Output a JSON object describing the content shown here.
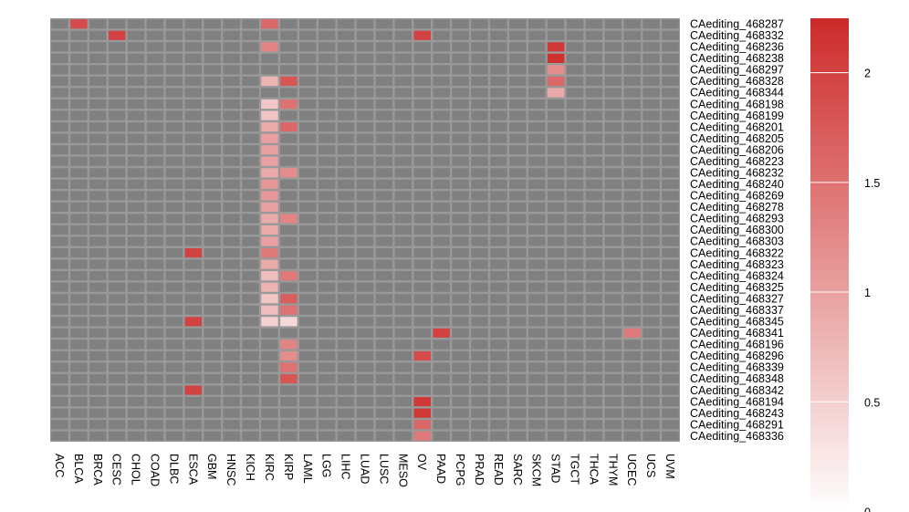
{
  "chart_data": {
    "type": "heatmap",
    "title": "",
    "xlabel": "",
    "ylabel": "",
    "rows": [
      "CAediting_468287",
      "CAediting_468332",
      "CAediting_468236",
      "CAediting_468238",
      "CAediting_468297",
      "CAediting_468328",
      "CAediting_468344",
      "CAediting_468198",
      "CAediting_468199",
      "CAediting_468201",
      "CAediting_468205",
      "CAediting_468206",
      "CAediting_468223",
      "CAediting_468232",
      "CAediting_468240",
      "CAediting_468269",
      "CAediting_468278",
      "CAediting_468293",
      "CAediting_468300",
      "CAediting_468303",
      "CAediting_468322",
      "CAediting_468323",
      "CAediting_468324",
      "CAediting_468325",
      "CAediting_468327",
      "CAediting_468337",
      "CAediting_468345",
      "CAediting_468341",
      "CAediting_468196",
      "CAediting_468296",
      "CAediting_468339",
      "CAediting_468348",
      "CAediting_468342",
      "CAediting_468194",
      "CAediting_468243",
      "CAediting_468291",
      "CAediting_468336"
    ],
    "columns": [
      "ACC",
      "BLCA",
      "BRCA",
      "CESC",
      "CHOL",
      "COAD",
      "DLBC",
      "ESCA",
      "GBM",
      "HNSC",
      "KICH",
      "KIRC",
      "KIRP",
      "LAML",
      "LGG",
      "LIHC",
      "LUAD",
      "LUSC",
      "MESO",
      "OV",
      "PAAD",
      "PCPG",
      "PRAD",
      "READ",
      "SARC",
      "SKCM",
      "STAD",
      "TGCT",
      "THCA",
      "THYM",
      "UCEC",
      "UCS",
      "UVM"
    ],
    "cells": [
      {
        "row": "CAediting_468287",
        "col": "BLCA",
        "value": 1.9
      },
      {
        "row": "CAediting_468287",
        "col": "KIRC",
        "value": 1.6
      },
      {
        "row": "CAediting_468332",
        "col": "CESC",
        "value": 2.0
      },
      {
        "row": "CAediting_468332",
        "col": "OV",
        "value": 2.0
      },
      {
        "row": "CAediting_468236",
        "col": "KIRC",
        "value": 1.3
      },
      {
        "row": "CAediting_468236",
        "col": "STAD",
        "value": 2.1
      },
      {
        "row": "CAediting_468238",
        "col": "STAD",
        "value": 2.2
      },
      {
        "row": "CAediting_468297",
        "col": "STAD",
        "value": 1.2
      },
      {
        "row": "CAediting_468328",
        "col": "KIRC",
        "value": 0.8
      },
      {
        "row": "CAediting_468328",
        "col": "KIRP",
        "value": 1.8
      },
      {
        "row": "CAediting_468328",
        "col": "STAD",
        "value": 1.6
      },
      {
        "row": "CAediting_468344",
        "col": "STAD",
        "value": 0.9
      },
      {
        "row": "CAediting_468198",
        "col": "KIRC",
        "value": 0.6
      },
      {
        "row": "CAediting_468198",
        "col": "KIRP",
        "value": 1.5
      },
      {
        "row": "CAediting_468199",
        "col": "KIRC",
        "value": 0.6
      },
      {
        "row": "CAediting_468201",
        "col": "KIRC",
        "value": 0.9
      },
      {
        "row": "CAediting_468201",
        "col": "KIRP",
        "value": 1.6
      },
      {
        "row": "CAediting_468205",
        "col": "KIRC",
        "value": 1.0
      },
      {
        "row": "CAediting_468206",
        "col": "KIRC",
        "value": 1.0
      },
      {
        "row": "CAediting_468223",
        "col": "KIRC",
        "value": 1.0
      },
      {
        "row": "CAediting_468232",
        "col": "KIRC",
        "value": 0.9
      },
      {
        "row": "CAediting_468232",
        "col": "KIRP",
        "value": 1.2
      },
      {
        "row": "CAediting_468240",
        "col": "KIRC",
        "value": 1.1
      },
      {
        "row": "CAediting_468269",
        "col": "KIRC",
        "value": 1.1
      },
      {
        "row": "CAediting_468278",
        "col": "KIRC",
        "value": 1.0
      },
      {
        "row": "CAediting_468293",
        "col": "KIRC",
        "value": 0.9
      },
      {
        "row": "CAediting_468293",
        "col": "KIRP",
        "value": 1.3
      },
      {
        "row": "CAediting_468300",
        "col": "KIRC",
        "value": 0.9
      },
      {
        "row": "CAediting_468303",
        "col": "KIRC",
        "value": 1.0
      },
      {
        "row": "CAediting_468322",
        "col": "ESCA",
        "value": 2.0
      },
      {
        "row": "CAediting_468322",
        "col": "KIRC",
        "value": 1.4
      },
      {
        "row": "CAediting_468323",
        "col": "KIRC",
        "value": 0.9
      },
      {
        "row": "CAediting_468324",
        "col": "KIRC",
        "value": 0.7
      },
      {
        "row": "CAediting_468324",
        "col": "KIRP",
        "value": 1.4
      },
      {
        "row": "CAediting_468325",
        "col": "KIRC",
        "value": 0.8
      },
      {
        "row": "CAediting_468327",
        "col": "KIRC",
        "value": 0.6
      },
      {
        "row": "CAediting_468327",
        "col": "KIRP",
        "value": 1.7
      },
      {
        "row": "CAediting_468337",
        "col": "KIRC",
        "value": 0.7
      },
      {
        "row": "CAediting_468337",
        "col": "KIRP",
        "value": 1.5
      },
      {
        "row": "CAediting_468345",
        "col": "ESCA",
        "value": 2.0
      },
      {
        "row": "CAediting_468345",
        "col": "KIRC",
        "value": 0.5
      },
      {
        "row": "CAediting_468345",
        "col": "KIRP",
        "value": 0.4
      },
      {
        "row": "CAediting_468341",
        "col": "PAAD",
        "value": 2.0
      },
      {
        "row": "CAediting_468341",
        "col": "UCEC",
        "value": 1.4
      },
      {
        "row": "CAediting_468196",
        "col": "KIRP",
        "value": 1.3
      },
      {
        "row": "CAediting_468296",
        "col": "KIRP",
        "value": 1.2
      },
      {
        "row": "CAediting_468296",
        "col": "OV",
        "value": 1.9
      },
      {
        "row": "CAediting_468339",
        "col": "KIRP",
        "value": 1.5
      },
      {
        "row": "CAediting_468348",
        "col": "KIRP",
        "value": 1.8
      },
      {
        "row": "CAediting_468342",
        "col": "ESCA",
        "value": 2.0
      },
      {
        "row": "CAediting_468194",
        "col": "OV",
        "value": 2.1
      },
      {
        "row": "CAediting_468243",
        "col": "OV",
        "value": 2.1
      },
      {
        "row": "CAediting_468291",
        "col": "OV",
        "value": 1.6
      },
      {
        "row": "CAediting_468336",
        "col": "OV",
        "value": 1.4
      }
    ],
    "value_range": [
      0,
      2.25
    ],
    "legend": {
      "position": "right",
      "ticks": [
        {
          "value": 0,
          "label": "0"
        },
        {
          "value": 0.5,
          "label": "0.5"
        },
        {
          "value": 1,
          "label": "1"
        },
        {
          "value": 1.5,
          "label": "1.5"
        },
        {
          "value": 2,
          "label": "2"
        }
      ],
      "low_color": "#ffffff",
      "high_color": "#cd2a2a"
    },
    "empty_color": "#808080",
    "grid_color": "#999999"
  }
}
